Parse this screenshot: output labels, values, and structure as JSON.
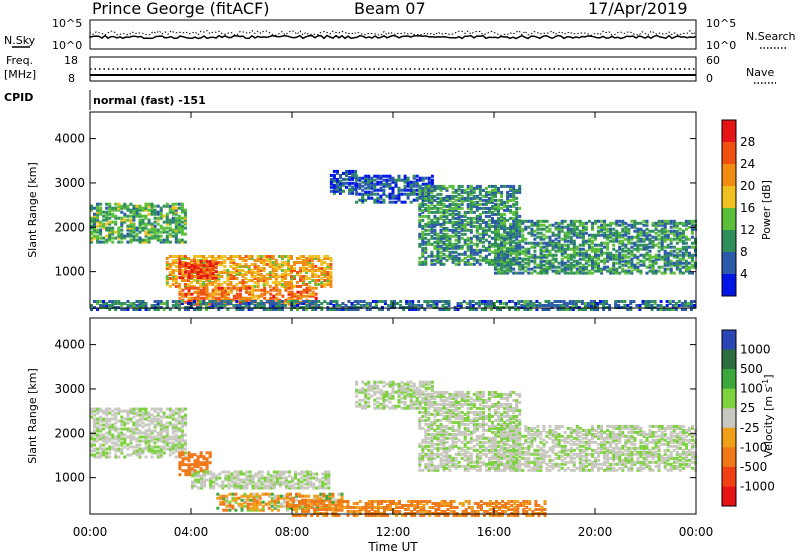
{
  "header": {
    "title": "Prince George (fitACF)",
    "beam": "Beam 07",
    "date": "17/Apr/2019"
  },
  "top_panel": {
    "left_label": "N.Sky",
    "right_label": "N.Search",
    "left_ticks": [
      "10^5",
      "10^0"
    ],
    "right_ticks": [
      "10^5",
      "10^0"
    ]
  },
  "freq_panel": {
    "left_label_1": "Freq.",
    "left_label_2": "[MHz]",
    "left_ticks": [
      "18",
      "8"
    ],
    "right_label": "Nave",
    "right_ticks": [
      "60",
      "0"
    ]
  },
  "cpid": {
    "label": "CPID",
    "value": "normal (fast) -151"
  },
  "colors": {
    "power": [
      "#0014e6",
      "#2a5aa8",
      "#2f8f5a",
      "#5cbf3a",
      "#f0c020",
      "#f08c10",
      "#f05010",
      "#e61414"
    ],
    "velocity": [
      "#2a46b4",
      "#2c6e3c",
      "#3ca83c",
      "#7cd23c",
      "#c8c8c0",
      "#f0a018",
      "#f07818",
      "#f04014",
      "#e61414"
    ]
  },
  "chart_data": [
    {
      "type": "heatmap",
      "title": "",
      "ylabel": "Slant Range [km]",
      "xlabel": "",
      "x_ticks": [
        "00:00",
        "04:00",
        "08:00",
        "12:00",
        "16:00",
        "20:00",
        "00:00"
      ],
      "y_ticks": [
        1000,
        2000,
        3000,
        4000
      ],
      "ylim": [
        180,
        4600
      ],
      "xlim_hours": [
        0,
        24
      ],
      "colorbar": {
        "label": "Power [dB]",
        "ticks": [
          4,
          8,
          12,
          16,
          20,
          24,
          28
        ],
        "range": [
          0,
          32
        ]
      },
      "features": [
        {
          "t0": 0.0,
          "t1": 3.8,
          "r0": 1700,
          "r1": 2600,
          "level": 12
        },
        {
          "t0": 3.0,
          "t1": 9.5,
          "r0": 700,
          "r1": 1400,
          "level": 20
        },
        {
          "t0": 3.5,
          "t1": 5.0,
          "r0": 900,
          "r1": 1300,
          "level": 28
        },
        {
          "t0": 3.5,
          "t1": 9.0,
          "r0": 300,
          "r1": 700,
          "level": 24
        },
        {
          "t0": 9.5,
          "t1": 10.5,
          "r0": 2800,
          "r1": 3300,
          "level": 6
        },
        {
          "t0": 10.5,
          "t1": 13.5,
          "r0": 2600,
          "r1": 3200,
          "level": 6
        },
        {
          "t0": 13.0,
          "t1": 17.0,
          "r0": 1200,
          "r1": 3000,
          "level": 10
        },
        {
          "t0": 16.0,
          "t1": 24.0,
          "r0": 1000,
          "r1": 2200,
          "level": 10
        },
        {
          "t0": 0.0,
          "t1": 24.0,
          "r0": 180,
          "r1": 400,
          "level": 8
        }
      ]
    },
    {
      "type": "heatmap",
      "title": "",
      "ylabel": "Slant Range [km]",
      "xlabel": "Time UT",
      "x_ticks": [
        "00:00",
        "04:00",
        "08:00",
        "12:00",
        "16:00",
        "20:00",
        "00:00"
      ],
      "y_ticks": [
        1000,
        2000,
        3000,
        4000
      ],
      "ylim": [
        180,
        4600
      ],
      "xlim_hours": [
        0,
        24
      ],
      "colorbar": {
        "label": "Velocity [m s^-1]",
        "ticks": [
          1000,
          500,
          100,
          25,
          -25,
          -100,
          -500,
          -1000
        ]
      },
      "features": [
        {
          "t0": 0.0,
          "t1": 3.8,
          "r0": 1500,
          "r1": 2600,
          "value": 0
        },
        {
          "t0": 3.5,
          "t1": 4.8,
          "r0": 1100,
          "r1": 1600,
          "value": -300
        },
        {
          "t0": 4.0,
          "t1": 9.5,
          "r0": 800,
          "r1": 1200,
          "value": 0
        },
        {
          "t0": 5.0,
          "t1": 10.0,
          "r0": 300,
          "r1": 700,
          "value": -50
        },
        {
          "t0": 10.5,
          "t1": 13.5,
          "r0": 2600,
          "r1": 3200,
          "value": 0
        },
        {
          "t0": 13.0,
          "t1": 17.0,
          "r0": 1200,
          "r1": 3000,
          "value": 0
        },
        {
          "t0": 16.0,
          "t1": 24.0,
          "r0": 1200,
          "r1": 2200,
          "value": 0
        },
        {
          "t0": 8.0,
          "t1": 18.0,
          "r0": 180,
          "r1": 500,
          "value": -150
        }
      ]
    }
  ]
}
